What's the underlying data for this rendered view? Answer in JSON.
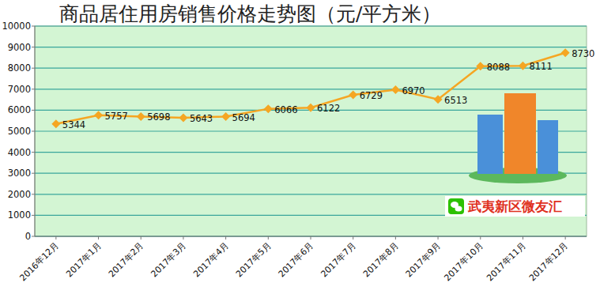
{
  "chart_data": {
    "type": "line",
    "title": "商品居住用房销售价格走势图（元/平方米）",
    "categories": [
      "2016年12月",
      "2017年1月",
      "2017年2月",
      "2017年3月",
      "2017年4月",
      "2017年5月",
      "2017年6月",
      "2017年7月",
      "2017年8月",
      "2017年9月",
      "2017年10月",
      "2017年11月",
      "2017年12月"
    ],
    "values": [
      5344,
      5757,
      5698,
      5643,
      5694,
      6066,
      6122,
      6729,
      6970,
      6513,
      8088,
      8111,
      8730
    ],
    "color": "#f5a623",
    "marker": "diamond",
    "data_labels": true,
    "ylim": [
      0,
      10000
    ],
    "yticks": [
      0,
      1000,
      2000,
      3000,
      4000,
      5000,
      6000,
      7000,
      8000,
      9000,
      10000
    ],
    "grid": true,
    "annotations": [
      "武夷新区微友汇"
    ]
  }
}
